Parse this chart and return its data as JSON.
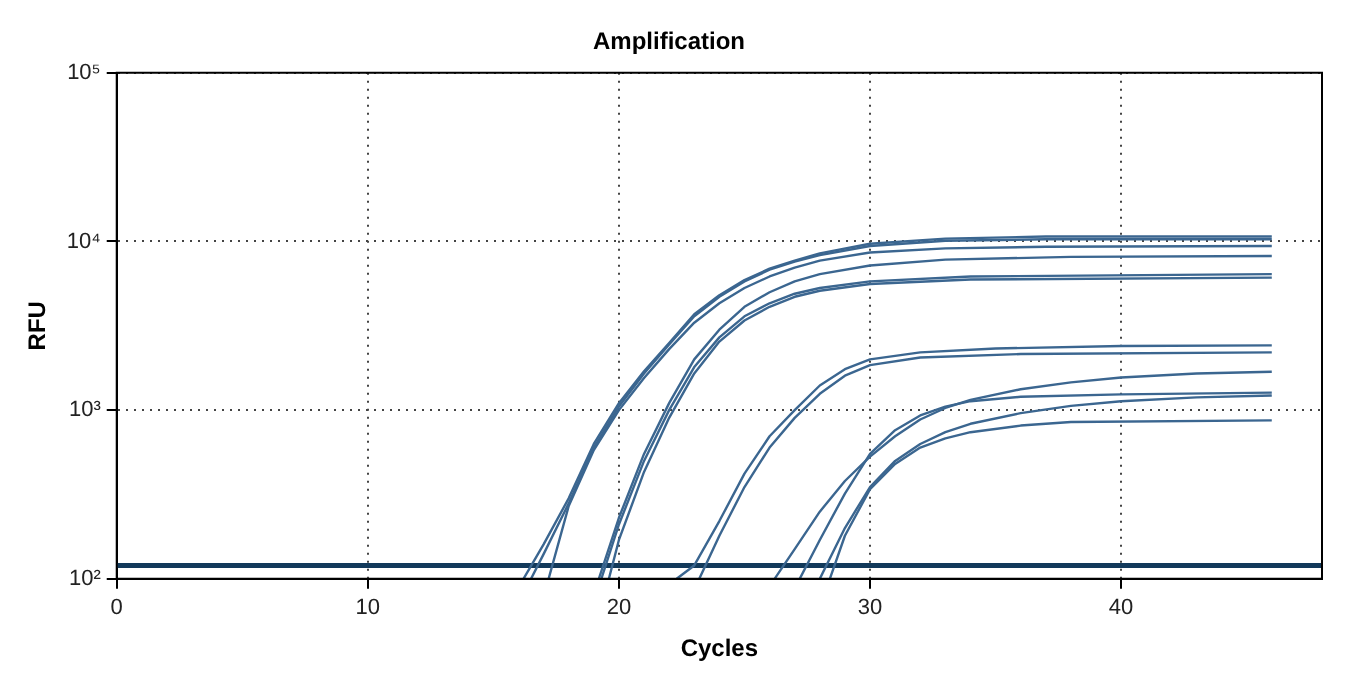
{
  "chart_data": {
    "type": "line",
    "title": "Amplification",
    "xlabel": "Cycles",
    "ylabel": "RFU",
    "log": "y",
    "grid": true,
    "marker": "none",
    "line_style": "solid",
    "xlim": [
      0,
      48
    ],
    "xticks": [
      0,
      10,
      20,
      30,
      40
    ],
    "ylim": [
      100,
      100000
    ],
    "yticks": [
      {
        "value": 100,
        "label": "10²"
      },
      {
        "value": 1000,
        "label": "10³"
      },
      {
        "value": 10000,
        "label": "10⁴"
      },
      {
        "value": 100000,
        "label": "10⁵"
      }
    ],
    "ref_lines": [
      {
        "axis": "y",
        "value": 120,
        "color": "#12395a"
      }
    ],
    "series": [
      {
        "color": "#3b6690",
        "x": [
          16.2,
          17,
          18,
          19,
          20,
          21,
          22,
          23,
          24,
          25,
          26,
          27,
          28,
          30,
          33,
          37,
          46
        ],
        "values": [
          100,
          160,
          300,
          630,
          1100,
          1700,
          2500,
          3700,
          4800,
          5900,
          6900,
          7700,
          8500,
          9700,
          10400,
          10700,
          10700
        ]
      },
      {
        "color": "#3b6690",
        "x": [
          16.5,
          17,
          18,
          19,
          20,
          21,
          22,
          23,
          24,
          25,
          26,
          27,
          28,
          30,
          33,
          37,
          46
        ],
        "values": [
          100,
          140,
          280,
          600,
          1050,
          1650,
          2450,
          3600,
          4700,
          5800,
          6800,
          7600,
          8300,
          9400,
          10100,
          10300,
          10300
        ]
      },
      {
        "color": "#3b6690",
        "x": [
          17.2,
          18,
          19,
          20,
          21,
          22,
          23,
          24,
          25,
          26,
          27,
          28,
          30,
          33,
          37,
          46
        ],
        "values": [
          100,
          270,
          580,
          1000,
          1550,
          2300,
          3300,
          4300,
          5300,
          6200,
          7000,
          7700,
          8600,
          9100,
          9300,
          9400
        ]
      },
      {
        "color": "#3b6690",
        "x": [
          19.2,
          20,
          21,
          22,
          23,
          24,
          25,
          26,
          27,
          28,
          30,
          33,
          38,
          46
        ],
        "values": [
          100,
          230,
          550,
          1100,
          2000,
          3000,
          4100,
          5000,
          5800,
          6400,
          7200,
          7800,
          8100,
          8200
        ]
      },
      {
        "color": "#3b6690",
        "x": [
          19.3,
          20,
          21,
          22,
          23,
          24,
          25,
          26,
          27,
          28,
          30,
          34,
          46
        ],
        "values": [
          100,
          210,
          500,
          1000,
          1800,
          2700,
          3600,
          4300,
          4900,
          5300,
          5800,
          6200,
          6400
        ]
      },
      {
        "color": "#3b6690",
        "x": [
          19.6,
          20,
          21,
          22,
          23,
          24,
          25,
          26,
          27,
          28,
          30,
          34,
          46
        ],
        "values": [
          100,
          170,
          430,
          900,
          1650,
          2550,
          3400,
          4100,
          4700,
          5100,
          5600,
          5950,
          6100
        ]
      },
      {
        "color": "#3b6690",
        "x": [
          22.3,
          23,
          24,
          25,
          26,
          27,
          28,
          29,
          30,
          32,
          35,
          40,
          46
        ],
        "values": [
          100,
          120,
          220,
          420,
          700,
          1000,
          1400,
          1750,
          2000,
          2200,
          2320,
          2400,
          2420
        ]
      },
      {
        "color": "#3b6690",
        "x": [
          23.2,
          24,
          25,
          26,
          27,
          28,
          29,
          30,
          32,
          36,
          46
        ],
        "values": [
          100,
          180,
          350,
          600,
          900,
          1250,
          1600,
          1850,
          2050,
          2150,
          2200
        ]
      },
      {
        "color": "#3b6690",
        "x": [
          26.2,
          27,
          28,
          29,
          30,
          31,
          32,
          33,
          34,
          36,
          38,
          40,
          43,
          46
        ],
        "values": [
          100,
          150,
          250,
          380,
          530,
          700,
          880,
          1030,
          1150,
          1330,
          1460,
          1560,
          1650,
          1690
        ]
      },
      {
        "color": "#3b6690",
        "x": [
          27.2,
          28,
          29,
          30,
          31,
          32,
          33,
          34,
          36,
          40,
          46
        ],
        "values": [
          100,
          170,
          320,
          550,
          760,
          930,
          1050,
          1130,
          1200,
          1240,
          1270
        ]
      },
      {
        "color": "#3b6690",
        "x": [
          28,
          29,
          30,
          31,
          32,
          33,
          34,
          36,
          38,
          40,
          43,
          46
        ],
        "values": [
          100,
          200,
          350,
          500,
          630,
          740,
          830,
          960,
          1060,
          1130,
          1190,
          1220
        ]
      },
      {
        "color": "#3b6690",
        "x": [
          28.4,
          29,
          30,
          31,
          32,
          33,
          34,
          36,
          38,
          46
        ],
        "values": [
          100,
          180,
          340,
          480,
          600,
          680,
          740,
          810,
          850,
          870
        ]
      }
    ]
  }
}
